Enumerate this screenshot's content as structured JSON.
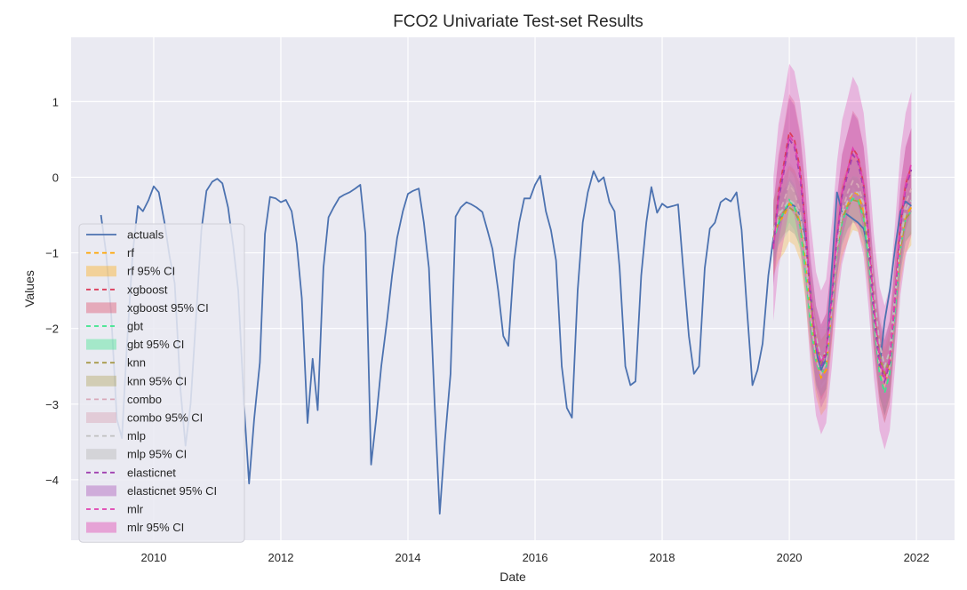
{
  "chart_data": {
    "type": "line",
    "title": "FCO2 Univariate Test-set Results",
    "xlabel": "Date",
    "ylabel": "Values",
    "xlim": [
      2008.7,
      2022.6
    ],
    "ylim": [
      -4.8,
      1.85
    ],
    "x_ticks": [
      {
        "value": 2010,
        "label": "2010"
      },
      {
        "value": 2012,
        "label": "2012"
      },
      {
        "value": 2014,
        "label": "2014"
      },
      {
        "value": 2016,
        "label": "2016"
      },
      {
        "value": 2018,
        "label": "2018"
      },
      {
        "value": 2020,
        "label": "2020"
      },
      {
        "value": 2022,
        "label": "2022"
      }
    ],
    "y_ticks": [
      {
        "value": 1,
        "label": "1"
      },
      {
        "value": 0,
        "label": "0"
      },
      {
        "value": -1,
        "label": "−1"
      },
      {
        "value": -2,
        "label": "−2"
      },
      {
        "value": -3,
        "label": "−3"
      },
      {
        "value": -4,
        "label": "−4"
      }
    ],
    "grid": true,
    "background": "#eaeaf2",
    "legend_position": "lower-left",
    "actuals": {
      "name": "actuals",
      "color": "#4c72b0",
      "points": [
        [
          2009.17,
          -0.5
        ],
        [
          2009.25,
          -1.0
        ],
        [
          2009.33,
          -1.8
        ],
        [
          2009.42,
          -3.2
        ],
        [
          2009.5,
          -3.45
        ],
        [
          2009.58,
          -2.2
        ],
        [
          2009.67,
          -1.0
        ],
        [
          2009.75,
          -0.38
        ],
        [
          2009.83,
          -0.45
        ],
        [
          2009.92,
          -0.3
        ],
        [
          2010.0,
          -0.12
        ],
        [
          2010.08,
          -0.2
        ],
        [
          2010.17,
          -0.6
        ],
        [
          2010.25,
          -1.05
        ],
        [
          2010.33,
          -1.4
        ],
        [
          2010.42,
          -2.8
        ],
        [
          2010.5,
          -3.55
        ],
        [
          2010.58,
          -3.0
        ],
        [
          2010.67,
          -1.8
        ],
        [
          2010.75,
          -0.7
        ],
        [
          2010.83,
          -0.18
        ],
        [
          2010.92,
          -0.06
        ],
        [
          2011.0,
          -0.02
        ],
        [
          2011.08,
          -0.08
        ],
        [
          2011.17,
          -0.4
        ],
        [
          2011.25,
          -0.9
        ],
        [
          2011.33,
          -1.5
        ],
        [
          2011.42,
          -3.0
        ],
        [
          2011.5,
          -4.05
        ],
        [
          2011.58,
          -3.2
        ],
        [
          2011.67,
          -2.45
        ],
        [
          2011.75,
          -0.75
        ],
        [
          2011.83,
          -0.26
        ],
        [
          2011.92,
          -0.28
        ],
        [
          2012.0,
          -0.33
        ],
        [
          2012.08,
          -0.3
        ],
        [
          2012.17,
          -0.45
        ],
        [
          2012.25,
          -0.88
        ],
        [
          2012.33,
          -1.6
        ],
        [
          2012.42,
          -3.25
        ],
        [
          2012.5,
          -2.4
        ],
        [
          2012.58,
          -3.08
        ],
        [
          2012.67,
          -1.2
        ],
        [
          2012.75,
          -0.53
        ],
        [
          2012.83,
          -0.4
        ],
        [
          2012.92,
          -0.27
        ],
        [
          2013.0,
          -0.23
        ],
        [
          2013.08,
          -0.2
        ],
        [
          2013.17,
          -0.15
        ],
        [
          2013.25,
          -0.1
        ],
        [
          2013.33,
          -0.75
        ],
        [
          2013.42,
          -3.8
        ],
        [
          2013.5,
          -3.2
        ],
        [
          2013.58,
          -2.5
        ],
        [
          2013.67,
          -1.9
        ],
        [
          2013.75,
          -1.3
        ],
        [
          2013.83,
          -0.8
        ],
        [
          2013.92,
          -0.45
        ],
        [
          2014.0,
          -0.22
        ],
        [
          2014.08,
          -0.18
        ],
        [
          2014.17,
          -0.15
        ],
        [
          2014.25,
          -0.6
        ],
        [
          2014.33,
          -1.2
        ],
        [
          2014.42,
          -3.0
        ],
        [
          2014.5,
          -4.45
        ],
        [
          2014.58,
          -3.5
        ],
        [
          2014.67,
          -2.6
        ],
        [
          2014.75,
          -0.52
        ],
        [
          2014.83,
          -0.4
        ],
        [
          2014.92,
          -0.33
        ],
        [
          2015.0,
          -0.36
        ],
        [
          2015.08,
          -0.4
        ],
        [
          2015.17,
          -0.46
        ],
        [
          2015.25,
          -0.7
        ],
        [
          2015.33,
          -0.95
        ],
        [
          2015.42,
          -1.5
        ],
        [
          2015.5,
          -2.1
        ],
        [
          2015.58,
          -2.23
        ],
        [
          2015.67,
          -1.1
        ],
        [
          2015.75,
          -0.6
        ],
        [
          2015.83,
          -0.28
        ],
        [
          2015.92,
          -0.28
        ],
        [
          2016.0,
          -0.1
        ],
        [
          2016.08,
          0.02
        ],
        [
          2016.17,
          -0.45
        ],
        [
          2016.25,
          -0.7
        ],
        [
          2016.33,
          -1.1
        ],
        [
          2016.42,
          -2.5
        ],
        [
          2016.5,
          -3.05
        ],
        [
          2016.58,
          -3.18
        ],
        [
          2016.67,
          -1.5
        ],
        [
          2016.75,
          -0.6
        ],
        [
          2016.83,
          -0.2
        ],
        [
          2016.92,
          0.08
        ],
        [
          2017.0,
          -0.06
        ],
        [
          2017.08,
          0.0
        ],
        [
          2017.17,
          -0.33
        ],
        [
          2017.25,
          -0.45
        ],
        [
          2017.33,
          -1.2
        ],
        [
          2017.42,
          -2.5
        ],
        [
          2017.5,
          -2.75
        ],
        [
          2017.58,
          -2.7
        ],
        [
          2017.67,
          -1.3
        ],
        [
          2017.75,
          -0.6
        ],
        [
          2017.83,
          -0.13
        ],
        [
          2017.92,
          -0.47
        ],
        [
          2018.0,
          -0.35
        ],
        [
          2018.08,
          -0.4
        ],
        [
          2018.17,
          -0.38
        ],
        [
          2018.25,
          -0.36
        ],
        [
          2018.33,
          -1.2
        ],
        [
          2018.42,
          -2.1
        ],
        [
          2018.5,
          -2.6
        ],
        [
          2018.58,
          -2.5
        ],
        [
          2018.67,
          -1.2
        ],
        [
          2018.75,
          -0.68
        ],
        [
          2018.83,
          -0.6
        ],
        [
          2018.92,
          -0.33
        ],
        [
          2019.0,
          -0.28
        ],
        [
          2019.08,
          -0.32
        ],
        [
          2019.17,
          -0.2
        ],
        [
          2019.25,
          -0.7
        ],
        [
          2019.33,
          -1.7
        ],
        [
          2019.42,
          -2.75
        ],
        [
          2019.5,
          -2.55
        ],
        [
          2019.58,
          -2.2
        ],
        [
          2019.67,
          -1.3
        ],
        [
          2019.75,
          -0.8
        ],
        [
          2019.83,
          -0.62
        ],
        [
          2019.92,
          -0.45
        ],
        [
          2020.0,
          -0.35
        ],
        [
          2020.08,
          -0.38
        ],
        [
          2020.17,
          -0.5
        ],
        [
          2020.25,
          -0.8
        ],
        [
          2020.33,
          -1.5
        ],
        [
          2020.42,
          -2.3
        ],
        [
          2020.5,
          -2.55
        ],
        [
          2020.58,
          -2.4
        ],
        [
          2020.67,
          -1.2
        ],
        [
          2020.75,
          -0.2
        ],
        [
          2020.83,
          -0.45
        ],
        [
          2020.92,
          -0.5
        ],
        [
          2021.0,
          -0.55
        ],
        [
          2021.08,
          -0.6
        ],
        [
          2021.17,
          -0.68
        ],
        [
          2021.25,
          -1.0
        ],
        [
          2021.33,
          -1.8
        ],
        [
          2021.42,
          -2.5
        ],
        [
          2021.5,
          -1.9
        ],
        [
          2021.58,
          -1.5
        ],
        [
          2021.67,
          -0.9
        ],
        [
          2021.75,
          -0.45
        ],
        [
          2021.83,
          -0.32
        ],
        [
          2021.92,
          -0.38
        ]
      ]
    },
    "forecast_x": [
      2019.75,
      2019.83,
      2019.92,
      2020.0,
      2020.08,
      2020.17,
      2020.25,
      2020.33,
      2020.42,
      2020.5,
      2020.58,
      2020.67,
      2020.75,
      2020.83,
      2020.92,
      2021.0,
      2021.08,
      2021.17,
      2021.25,
      2021.33,
      2021.42,
      2021.5,
      2021.58,
      2021.67,
      2021.75,
      2021.83,
      2021.92
    ],
    "series": [
      {
        "name": "rf",
        "ci_name": "rf 95% CI",
        "color": "#ffa500",
        "ci_alpha": 0.25,
        "ci_halfwidth": 0.5,
        "values": [
          -0.8,
          -0.6,
          -0.5,
          -0.35,
          -0.4,
          -0.6,
          -1.1,
          -1.8,
          -2.4,
          -2.65,
          -2.55,
          -1.7,
          -0.95,
          -0.55,
          -0.35,
          -0.2,
          -0.22,
          -0.45,
          -1.0,
          -1.8,
          -2.5,
          -2.75,
          -2.5,
          -1.6,
          -0.9,
          -0.5,
          -0.4
        ]
      },
      {
        "name": "xgboost",
        "ci_name": "xgboost 95% CI",
        "color": "#dc3c5a",
        "ci_alpha": 0.25,
        "ci_halfwidth": 0.5,
        "values": [
          -0.9,
          -0.2,
          0.2,
          0.6,
          0.5,
          0.1,
          -0.6,
          -1.6,
          -2.2,
          -2.45,
          -2.3,
          -1.6,
          -0.8,
          -0.2,
          0.1,
          0.38,
          0.28,
          -0.1,
          -0.8,
          -1.7,
          -2.4,
          -2.65,
          -2.4,
          -1.5,
          -0.6,
          -0.1,
          0.15
        ]
      },
      {
        "name": "gbt",
        "ci_name": "gbt 95% CI",
        "color": "#3ce68c",
        "ci_alpha": 0.28,
        "ci_halfwidth": 0.3,
        "values": [
          -0.85,
          -0.6,
          -0.45,
          -0.3,
          -0.4,
          -0.65,
          -1.2,
          -1.9,
          -2.45,
          -2.6,
          -2.5,
          -1.7,
          -1.0,
          -0.6,
          -0.38,
          -0.28,
          -0.3,
          -0.55,
          -1.1,
          -1.9,
          -2.6,
          -2.85,
          -2.6,
          -1.7,
          -0.95,
          -0.55,
          -0.45
        ]
      },
      {
        "name": "knn",
        "ci_name": "knn 95% CI",
        "color": "#a89a4a",
        "ci_alpha": 0.25,
        "ci_halfwidth": 0.3,
        "values": [
          -0.8,
          -0.55,
          -0.45,
          -0.4,
          -0.45,
          -0.6,
          -1.0,
          -1.6,
          -2.2,
          -2.45,
          -2.35,
          -1.6,
          -0.95,
          -0.55,
          -0.38,
          -0.3,
          -0.32,
          -0.5,
          -0.95,
          -1.7,
          -2.35,
          -2.6,
          -2.4,
          -1.6,
          -0.95,
          -0.55,
          -0.45
        ]
      },
      {
        "name": "combo",
        "ci_name": "combo 95% CI",
        "color": "#d8a8b8",
        "ci_alpha": 0.35,
        "ci_halfwidth": 0.3,
        "values": [
          -0.85,
          -0.5,
          -0.3,
          -0.1,
          -0.2,
          -0.45,
          -1.0,
          -1.8,
          -2.4,
          -2.6,
          -2.45,
          -1.7,
          -0.95,
          -0.45,
          -0.2,
          -0.05,
          -0.1,
          -0.35,
          -0.95,
          -1.8,
          -2.5,
          -2.75,
          -2.5,
          -1.6,
          -0.85,
          -0.35,
          -0.15
        ]
      },
      {
        "name": "mlp",
        "ci_name": "mlp 95% CI",
        "color": "#c0c0c0",
        "ci_alpha": 0.4,
        "ci_halfwidth": 0.4,
        "values": [
          -0.7,
          -0.5,
          -0.4,
          -0.3,
          -0.35,
          -0.5,
          -0.9,
          -1.5,
          -2.1,
          -2.4,
          -2.3,
          -1.6,
          -0.9,
          -0.5,
          -0.3,
          -0.2,
          -0.2,
          -0.35,
          -0.8,
          -1.5,
          -2.2,
          -2.5,
          -2.3,
          -1.5,
          -0.85,
          -0.45,
          -0.3
        ]
      },
      {
        "name": "elasticnet",
        "ci_name": "elasticnet 95% CI",
        "color": "#a040b0",
        "ci_alpha": 0.25,
        "ci_halfwidth": 0.55,
        "values": [
          -0.9,
          -0.3,
          0.1,
          0.5,
          0.4,
          0.0,
          -0.65,
          -1.55,
          -2.25,
          -2.5,
          -2.35,
          -1.6,
          -0.8,
          -0.25,
          0.05,
          0.3,
          0.2,
          -0.15,
          -0.85,
          -1.75,
          -2.45,
          -2.7,
          -2.45,
          -1.55,
          -0.65,
          -0.15,
          0.1
        ]
      },
      {
        "name": "mlr",
        "ci_name": "mlr 95% CI",
        "color": "#e040b0",
        "ci_alpha": 0.3,
        "ci_halfwidth": 0.95,
        "values": [
          -0.95,
          -0.25,
          0.15,
          0.55,
          0.45,
          0.05,
          -0.6,
          -1.5,
          -2.2,
          -2.45,
          -2.3,
          -1.55,
          -0.75,
          -0.2,
          0.1,
          0.38,
          0.25,
          -0.1,
          -0.8,
          -1.7,
          -2.4,
          -2.65,
          -2.4,
          -1.5,
          -0.6,
          -0.1,
          0.18
        ]
      }
    ]
  }
}
